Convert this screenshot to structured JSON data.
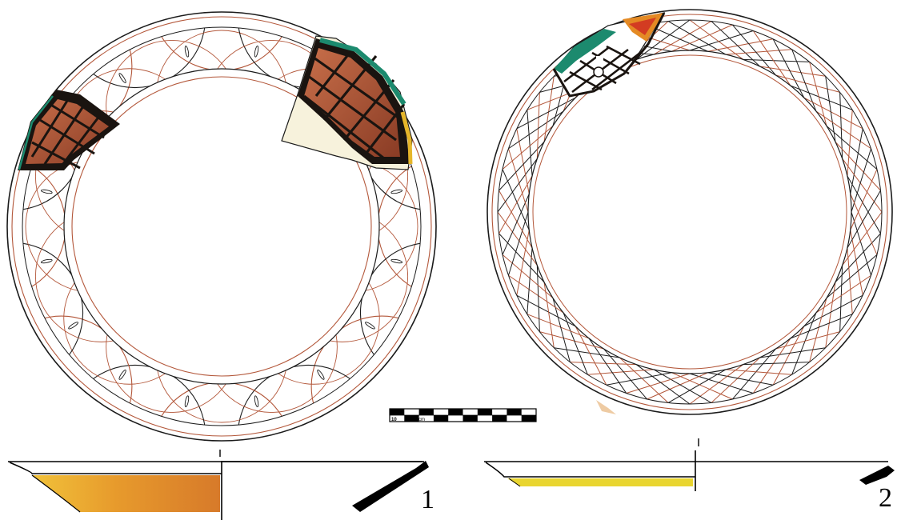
{
  "figures": [
    {
      "number": "1",
      "vessel": "plate-1"
    },
    {
      "number": "2",
      "vessel": "plate-2"
    }
  ],
  "scale_bar": {
    "left_label": "10",
    "unit_label": "cm",
    "right_label": "A",
    "segments": 10
  },
  "colors": {
    "outline": "#1b1b1b",
    "sgraffito_line": "#b3573a",
    "glaze_brown": "#9b4a2e",
    "glaze_dark": "#1a1410",
    "glaze_green": "#1c8a6e",
    "glaze_yellow": "#e6b62a",
    "glaze_orange": "#e48a24",
    "profile_yellow": "#e9d530"
  }
}
